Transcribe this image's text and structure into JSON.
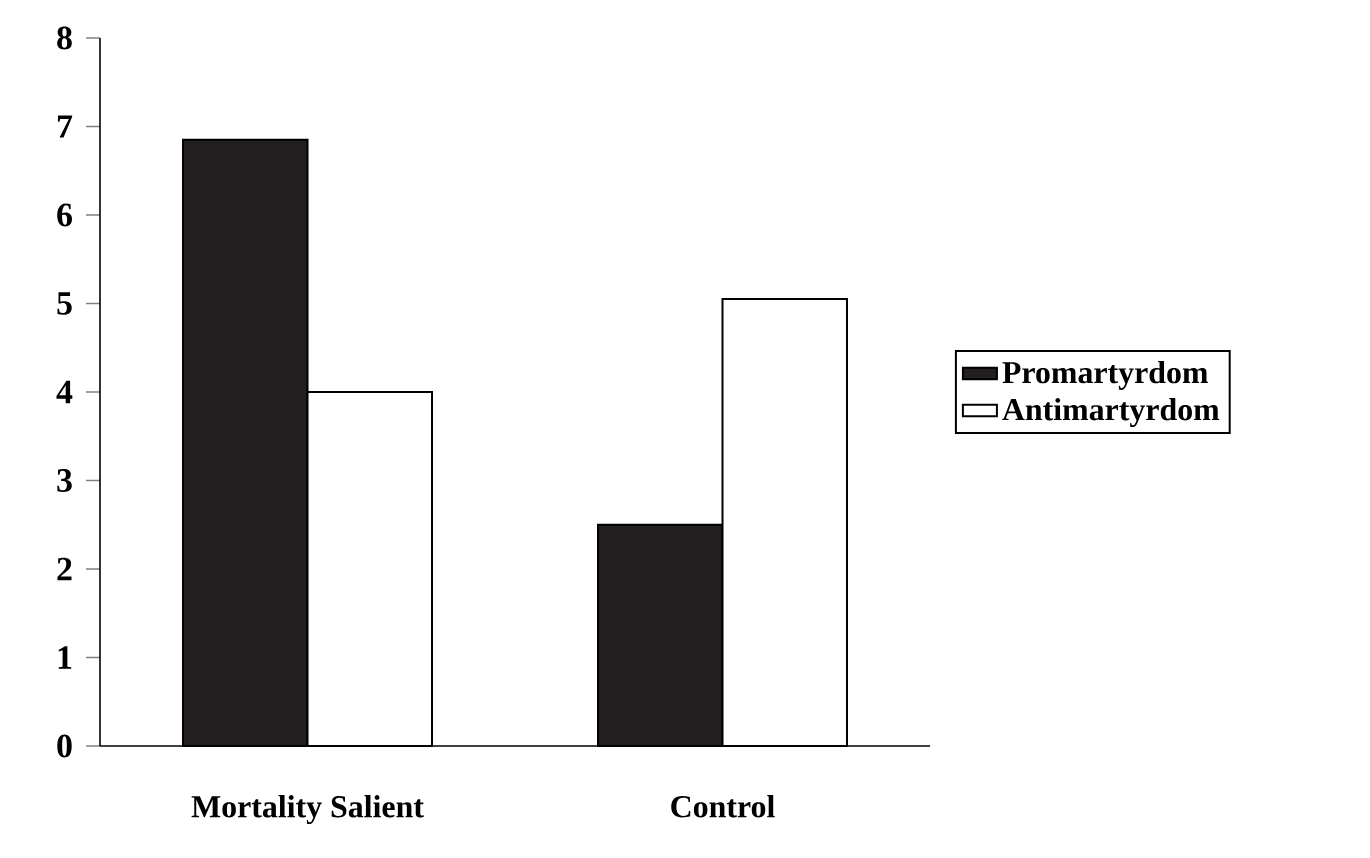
{
  "chart_data": {
    "type": "bar",
    "categories": [
      "Mortality Salient",
      "Control"
    ],
    "series": [
      {
        "name": "Promartyrdom",
        "color": "#231f20",
        "values": [
          6.85,
          2.5
        ]
      },
      {
        "name": "Antimartyrdom",
        "color": "#ffffff",
        "values": [
          4.0,
          5.05
        ]
      }
    ],
    "ylim": [
      0,
      8
    ],
    "yticks": [
      0,
      1,
      2,
      3,
      4,
      5,
      6,
      7,
      8
    ],
    "grid": false,
    "legend": "right"
  }
}
